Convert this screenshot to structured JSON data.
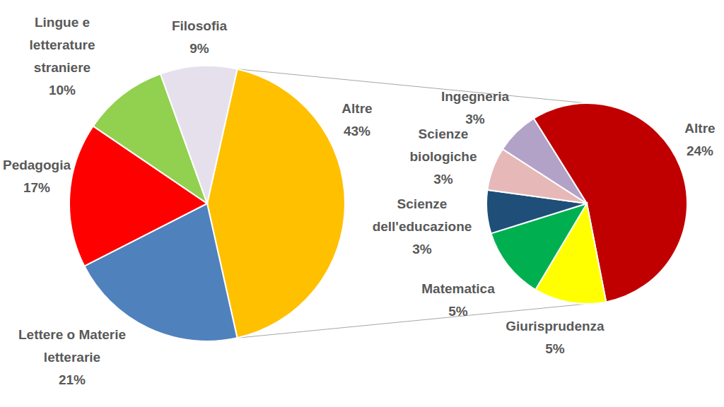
{
  "chart_data": [
    {
      "type": "pie",
      "categories": [
        "Altre",
        "Lettere o Materie letterarie",
        "Pedagogia",
        "Lingue e letterature straniere",
        "Filosofia"
      ],
      "values": [
        43,
        21,
        17,
        10,
        9
      ],
      "value_labels": [
        "43%",
        "21%",
        "17%",
        "10%",
        "9%"
      ],
      "colors": [
        "#FFC000",
        "#4F81BD",
        "#FF0000",
        "#92D050",
        "#E6E0EC"
      ],
      "data_labels": true
    },
    {
      "type": "pie",
      "categories": [
        "Altre",
        "Giurisprudenza",
        "Matematica",
        "Scienze dell'educazione",
        "Scienze biologiche",
        "Ingegneria"
      ],
      "values": [
        24,
        5,
        5,
        3,
        3,
        3
      ],
      "value_labels": [
        "24%",
        "5%",
        "5%",
        "3%",
        "3%",
        "3%"
      ],
      "colors": [
        "#C00000",
        "#FFFF00",
        "#00B050",
        "#1F4E79",
        "#E6B9B8",
        "#B3A2C7"
      ],
      "data_labels": true
    }
  ]
}
